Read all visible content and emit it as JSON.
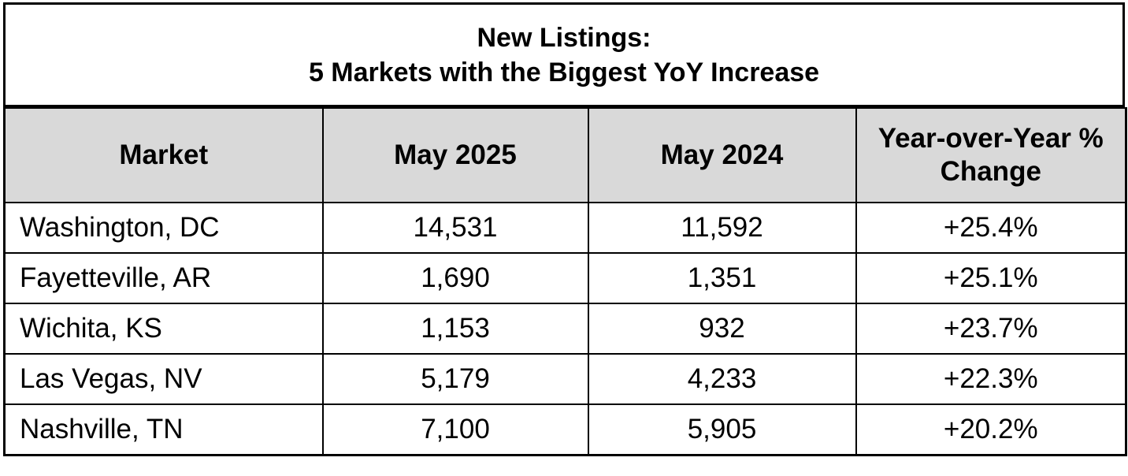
{
  "header": {
    "title_lines": [
      "New Listings:",
      "5 Markets with the Biggest YoY Increase"
    ]
  },
  "table": {
    "columns": [
      "Market",
      "May 2025",
      "May 2024",
      "Year-over-Year % Change"
    ],
    "rows": [
      [
        "Washington, DC",
        "14,531",
        "11,592",
        "+25.4%"
      ],
      [
        "Fayetteville, AR",
        "1,690",
        "1,351",
        "+25.1%"
      ],
      [
        "Wichita, KS",
        "1,153",
        "932",
        "+23.7%"
      ],
      [
        "Las Vegas, NV",
        "5,179",
        "4,233",
        "+22.3%"
      ],
      [
        "Nashville, TN",
        "7,100",
        "5,905",
        "+20.2%"
      ]
    ]
  }
}
